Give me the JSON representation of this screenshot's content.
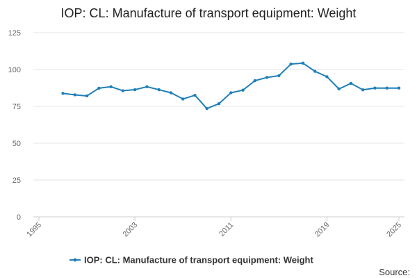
{
  "chart_data": {
    "type": "line",
    "title": "IOP: CL: Manufacture of transport equipment: Weight",
    "xlabel": "",
    "ylabel": "",
    "xlim": [
      1995,
      2025
    ],
    "ylim": [
      0,
      125
    ],
    "y_ticks": [
      "0",
      "25",
      "50",
      "75",
      "100",
      "125"
    ],
    "x_ticks": [
      "1995",
      "2003",
      "2011",
      "2019",
      "2025"
    ],
    "grid": "horizontal",
    "legend_position": "bottom",
    "series": [
      {
        "name": "IOP: CL: Manufacture of transport equipment: Weight",
        "color": "#1f7fb8",
        "x": [
          1997,
          1998,
          1999,
          2000,
          2001,
          2002,
          2003,
          2004,
          2005,
          2006,
          2007,
          2008,
          2009,
          2010,
          2011,
          2012,
          2013,
          2014,
          2015,
          2016,
          2017,
          2018,
          2019,
          2020,
          2021,
          2022,
          2023,
          2024,
          2025
        ],
        "values": [
          83.8,
          82.8,
          82.1,
          87.3,
          88.3,
          85.6,
          86.3,
          88.3,
          86.3,
          84.2,
          80.0,
          82.5,
          73.5,
          76.8,
          84.2,
          86.0,
          92.4,
          94.6,
          95.8,
          103.7,
          104.3,
          98.8,
          95.1,
          86.8,
          90.6,
          86.2,
          87.4,
          87.4,
          87.4
        ]
      }
    ]
  },
  "footer": {
    "source_label": "Source:"
  },
  "colors": {
    "line": "#1f7fb8",
    "grid": "#e6e6e6",
    "axis": "#cccccc"
  }
}
